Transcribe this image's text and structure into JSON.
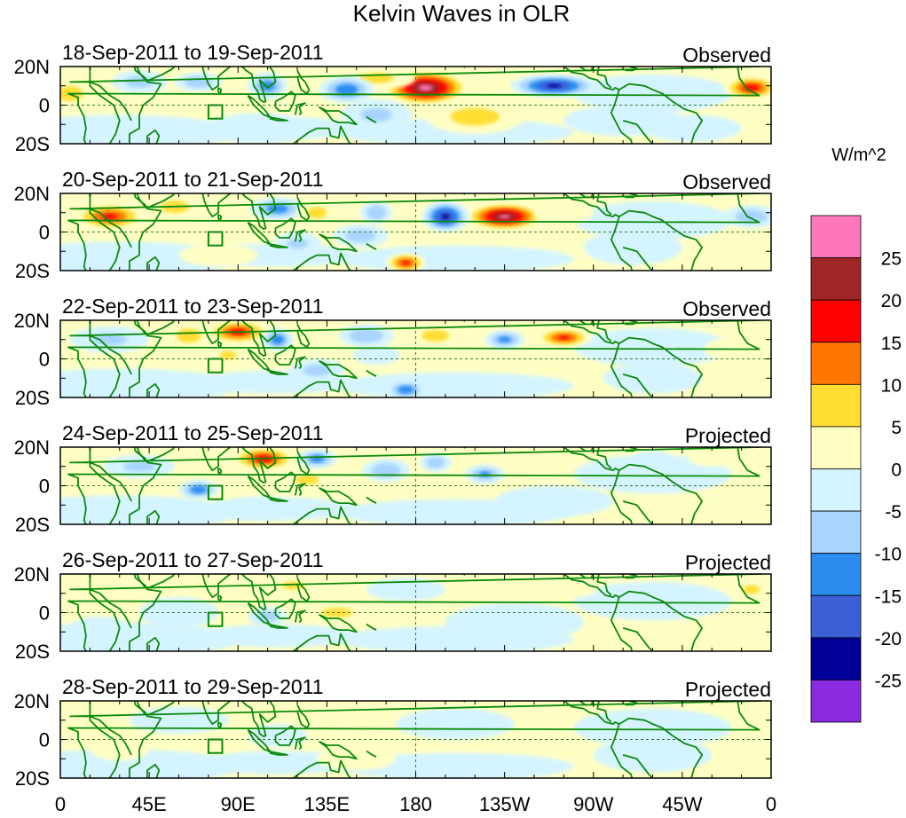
{
  "chart_data": {
    "type": "heatmap",
    "title": "Kelvin Waves in OLR",
    "xlabel": "",
    "ylabel": "",
    "xlim": [
      0,
      360
    ],
    "ylim": [
      -20,
      20
    ],
    "x_ticks": [
      {
        "lon": 0,
        "label": "0"
      },
      {
        "lon": 45,
        "label": "45E"
      },
      {
        "lon": 90,
        "label": "90E"
      },
      {
        "lon": 135,
        "label": "135E"
      },
      {
        "lon": 180,
        "label": "180"
      },
      {
        "lon": 225,
        "label": "135W"
      },
      {
        "lon": 270,
        "label": "90W"
      },
      {
        "lon": 315,
        "label": "45W"
      },
      {
        "lon": 360,
        "label": "0"
      }
    ],
    "y_ticks": [
      {
        "lat": 20,
        "label": "20N"
      },
      {
        "lat": 0,
        "label": "0"
      },
      {
        "lat": -20,
        "label": "20S"
      }
    ],
    "colorbar": {
      "units": "W/m^2",
      "levels": [
        "25",
        "20",
        "15",
        "10",
        "5",
        "0",
        "-5",
        "-10",
        "-15",
        "-20",
        "-25"
      ],
      "colors": [
        "#ff77bb",
        "#9e2626",
        "#ff0000",
        "#ff7700",
        "#ffdd33",
        "#ffffc4",
        "#d4f4ff",
        "#a8d4ff",
        "#2b8cf0",
        "#3b5fd6",
        "#000099",
        "#8a2be2"
      ]
    },
    "coast_color": "#0a8a0a",
    "panels": [
      {
        "date": "18-Sep-2011 to 19-Sep-2011",
        "status": "Observed",
        "anomalies": [
          {
            "lon": 185,
            "lat": 9,
            "rlon": 22,
            "rlat": 9,
            "v": 27
          },
          {
            "lon": 350,
            "lat": 9,
            "rlon": 14,
            "rlat": 6,
            "v": 18
          },
          {
            "lon": 5,
            "lat": 6,
            "rlon": 12,
            "rlat": 7,
            "v": 8
          },
          {
            "lon": 210,
            "lat": -6,
            "rlon": 25,
            "rlat": 9,
            "v": 7
          },
          {
            "lon": 160,
            "lat": 14,
            "rlon": 20,
            "rlat": 6,
            "v": 6
          },
          {
            "lon": 250,
            "lat": 10,
            "rlon": 22,
            "rlat": 6,
            "v": -21
          },
          {
            "lon": 145,
            "lat": 8,
            "rlon": 14,
            "rlat": 7,
            "v": -14
          },
          {
            "lon": 105,
            "lat": 10,
            "rlon": 10,
            "rlat": 7,
            "v": -13
          },
          {
            "lon": 70,
            "lat": 12,
            "rlon": 12,
            "rlat": 5,
            "v": -9
          },
          {
            "lon": 40,
            "lat": 12,
            "rlon": 14,
            "rlat": 6,
            "v": -7
          },
          {
            "lon": 160,
            "lat": -5,
            "rlon": 18,
            "rlat": 8,
            "v": -6
          },
          {
            "lon": 285,
            "lat": -8,
            "rlon": 30,
            "rlat": 8,
            "v": -5
          },
          {
            "lon": 100,
            "lat": -12,
            "rlon": 25,
            "rlat": 8,
            "v": -3
          },
          {
            "lon": 320,
            "lat": -12,
            "rlon": 25,
            "rlat": 7,
            "v": -3
          }
        ]
      },
      {
        "date": "20-Sep-2011 to 21-Sep-2011",
        "status": "Observed",
        "anomalies": [
          {
            "lon": 225,
            "lat": 8,
            "rlon": 20,
            "rlat": 7,
            "v": 26
          },
          {
            "lon": 25,
            "lat": 8,
            "rlon": 18,
            "rlat": 7,
            "v": 16
          },
          {
            "lon": 58,
            "lat": 13,
            "rlon": 12,
            "rlat": 5,
            "v": 10
          },
          {
            "lon": 175,
            "lat": -16,
            "rlon": 10,
            "rlat": 5,
            "v": 16
          },
          {
            "lon": 195,
            "lat": 8,
            "rlon": 12,
            "rlat": 8,
            "v": -21
          },
          {
            "lon": 160,
            "lat": 10,
            "rlon": 8,
            "rlat": 6,
            "v": -10
          },
          {
            "lon": 110,
            "lat": 12,
            "rlon": 14,
            "rlat": 6,
            "v": -13
          },
          {
            "lon": 152,
            "lat": -2,
            "rlon": 14,
            "rlat": 6,
            "v": -8
          },
          {
            "lon": 120,
            "lat": -6,
            "rlon": 12,
            "rlat": 6,
            "v": -6
          },
          {
            "lon": 130,
            "lat": 10,
            "rlon": 10,
            "rlat": 6,
            "v": 7
          },
          {
            "lon": 350,
            "lat": 8,
            "rlon": 14,
            "rlat": 6,
            "v": -9
          },
          {
            "lon": 80,
            "lat": -12,
            "rlon": 20,
            "rlat": 6,
            "v": 4
          },
          {
            "lon": 290,
            "lat": -8,
            "rlon": 25,
            "rlat": 9,
            "v": -5
          },
          {
            "lon": 255,
            "lat": 10,
            "rlon": 15,
            "rlat": 6,
            "v": 3
          }
        ]
      },
      {
        "date": "22-Sep-2011 to 23-Sep-2011",
        "status": "Observed",
        "anomalies": [
          {
            "lon": 90,
            "lat": 14,
            "rlon": 16,
            "rlat": 6,
            "v": 17
          },
          {
            "lon": 255,
            "lat": 11,
            "rlon": 14,
            "rlat": 5,
            "v": 16
          },
          {
            "lon": 65,
            "lat": 12,
            "rlon": 10,
            "rlat": 6,
            "v": 10
          },
          {
            "lon": 85,
            "lat": 2,
            "rlon": 8,
            "rlat": 4,
            "v": 8
          },
          {
            "lon": 190,
            "lat": 12,
            "rlon": 14,
            "rlat": 6,
            "v": 7
          },
          {
            "lon": 110,
            "lat": 10,
            "rlon": 8,
            "rlat": 6,
            "v": -14
          },
          {
            "lon": 155,
            "lat": 12,
            "rlon": 14,
            "rlat": 6,
            "v": -10
          },
          {
            "lon": 225,
            "lat": 10,
            "rlon": 10,
            "rlat": 5,
            "v": -12
          },
          {
            "lon": 175,
            "lat": -16,
            "rlon": 10,
            "rlat": 5,
            "v": -14
          },
          {
            "lon": 130,
            "lat": -6,
            "rlon": 14,
            "rlat": 6,
            "v": -7
          },
          {
            "lon": 25,
            "lat": 10,
            "rlon": 20,
            "rlat": 7,
            "v": -6
          },
          {
            "lon": 160,
            "lat": 2,
            "rlon": 12,
            "rlat": 5,
            "v": -5
          },
          {
            "lon": 300,
            "lat": -10,
            "rlon": 25,
            "rlat": 8,
            "v": -4
          },
          {
            "lon": 340,
            "lat": 5,
            "rlon": 14,
            "rlat": 6,
            "v": 4
          }
        ]
      },
      {
        "date": "24-Sep-2011 to 25-Sep-2011",
        "status": "Projected",
        "anomalies": [
          {
            "lon": 103,
            "lat": 14,
            "rlon": 16,
            "rlat": 6,
            "v": 18
          },
          {
            "lon": 125,
            "lat": 3,
            "rlon": 10,
            "rlat": 4,
            "v": 10
          },
          {
            "lon": 70,
            "lat": -2,
            "rlon": 10,
            "rlat": 5,
            "v": -14
          },
          {
            "lon": 130,
            "lat": 14,
            "rlon": 10,
            "rlat": 5,
            "v": -13
          },
          {
            "lon": 165,
            "lat": 8,
            "rlon": 12,
            "rlat": 6,
            "v": -10
          },
          {
            "lon": 190,
            "lat": 12,
            "rlon": 8,
            "rlat": 5,
            "v": -9
          },
          {
            "lon": 215,
            "lat": 6,
            "rlon": 10,
            "rlat": 5,
            "v": -11
          },
          {
            "lon": 40,
            "lat": 10,
            "rlon": 18,
            "rlat": 6,
            "v": -6
          },
          {
            "lon": 100,
            "lat": -12,
            "rlon": 18,
            "rlat": 6,
            "v": -4
          },
          {
            "lon": 250,
            "lat": -8,
            "rlon": 30,
            "rlat": 8,
            "v": -3
          },
          {
            "lon": 330,
            "lat": 14,
            "rlon": 12,
            "rlat": 4,
            "v": 5
          },
          {
            "lon": 300,
            "lat": 14,
            "rlon": 10,
            "rlat": 4,
            "v": -4
          }
        ]
      },
      {
        "date": "26-Sep-2011 to 27-Sep-2011",
        "status": "Projected",
        "anomalies": [
          {
            "lon": 118,
            "lat": 14,
            "rlon": 12,
            "rlat": 4,
            "v": 7
          },
          {
            "lon": 140,
            "lat": 0,
            "rlon": 16,
            "rlat": 5,
            "v": 7
          },
          {
            "lon": 105,
            "lat": -2,
            "rlon": 10,
            "rlat": 5,
            "v": -8
          },
          {
            "lon": 175,
            "lat": 12,
            "rlon": 20,
            "rlat": 6,
            "v": -4
          },
          {
            "lon": 60,
            "lat": 0,
            "rlon": 20,
            "rlat": 8,
            "v": -3
          },
          {
            "lon": 350,
            "lat": 12,
            "rlon": 10,
            "rlat": 5,
            "v": 6
          },
          {
            "lon": 260,
            "lat": 12,
            "rlon": 12,
            "rlat": 4,
            "v": 5
          },
          {
            "lon": 230,
            "lat": -5,
            "rlon": 35,
            "rlat": 10,
            "v": -3
          },
          {
            "lon": 20,
            "lat": -8,
            "rlon": 15,
            "rlat": 6,
            "v": -3
          }
        ]
      },
      {
        "date": "28-Sep-2011 to 29-Sep-2011",
        "status": "Projected",
        "anomalies": [
          {
            "lon": 60,
            "lat": 10,
            "rlon": 25,
            "rlat": 7,
            "v": -4
          },
          {
            "lon": 110,
            "lat": 2,
            "rlon": 15,
            "rlat": 6,
            "v": -4
          },
          {
            "lon": 200,
            "lat": 8,
            "rlon": 30,
            "rlat": 8,
            "v": -3
          },
          {
            "lon": 300,
            "lat": -8,
            "rlon": 30,
            "rlat": 9,
            "v": -3
          },
          {
            "lon": 150,
            "lat": -10,
            "rlon": 20,
            "rlat": 6,
            "v": 2
          },
          {
            "lon": 30,
            "lat": -5,
            "rlon": 15,
            "rlat": 6,
            "v": 2
          }
        ]
      }
    ]
  }
}
